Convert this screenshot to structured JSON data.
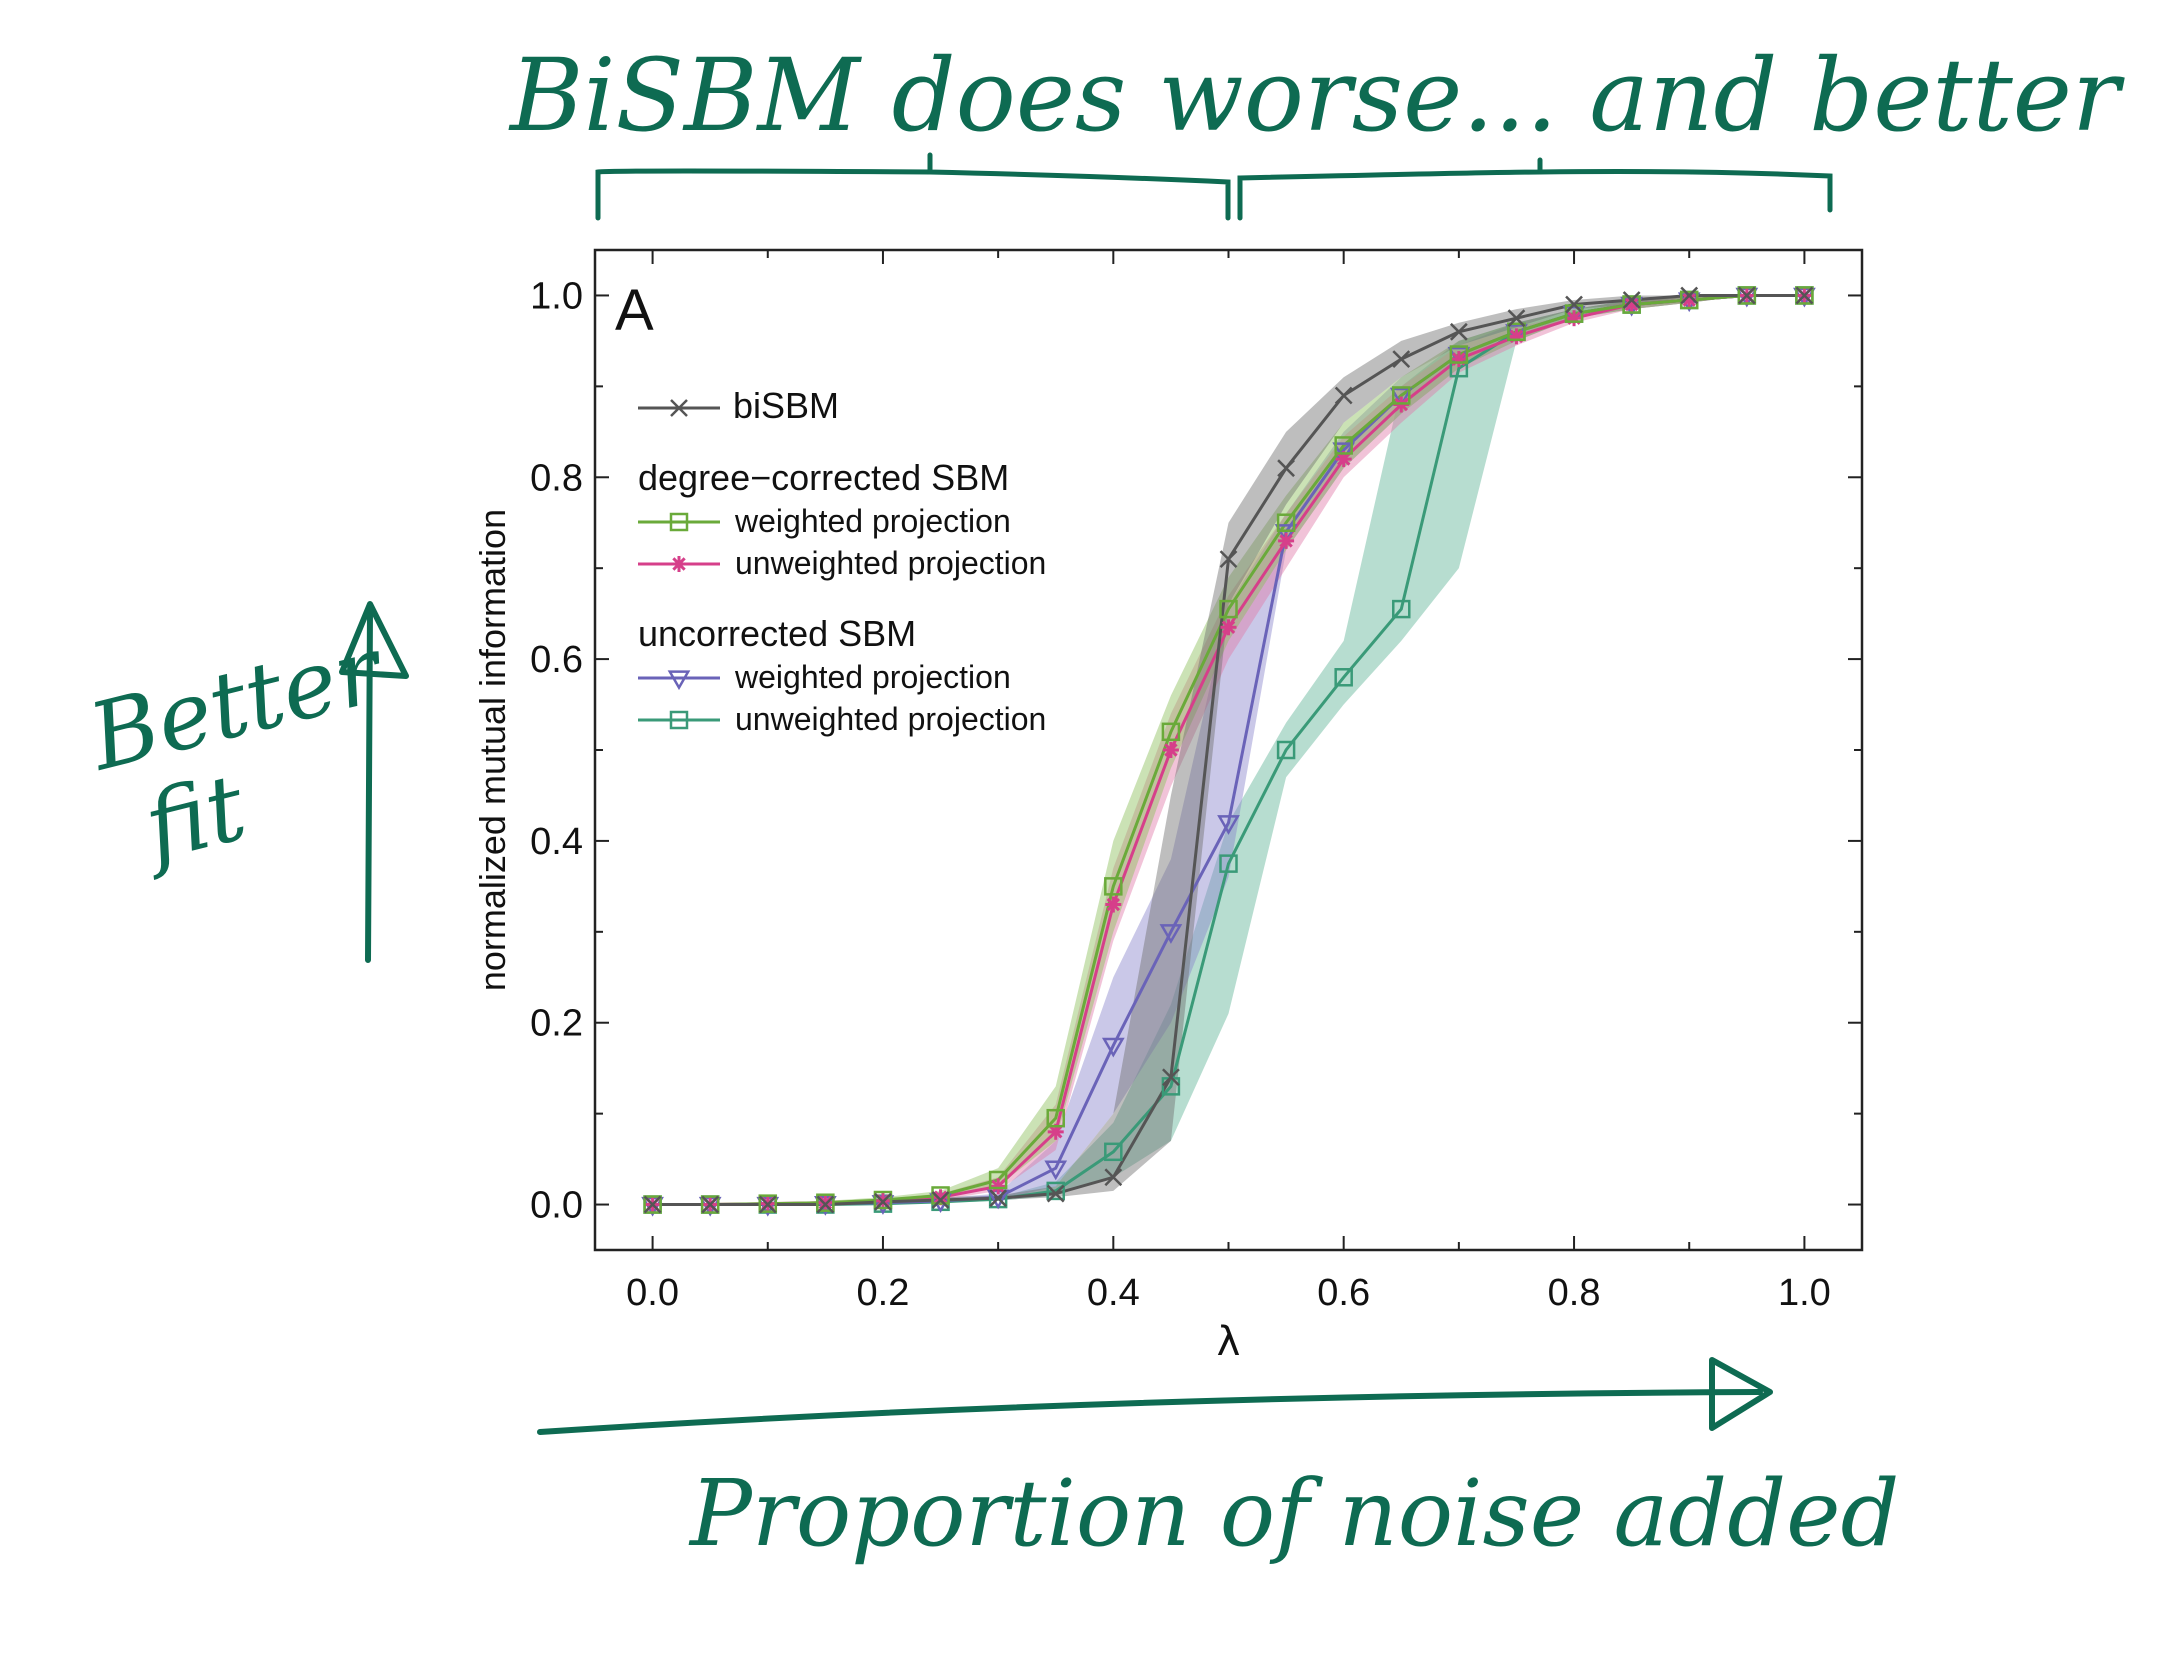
{
  "annotations": {
    "top_note": "BiSBM does worse... and better",
    "left_note_line1": "Better",
    "left_note_line2": "fit",
    "bottom_note": "Proportion of noise added",
    "ink_color": "#0e6b52"
  },
  "chart_data": {
    "type": "line",
    "panel_label": "A",
    "xlabel": "λ",
    "ylabel": "normalized mutual information",
    "xlim": [
      -0.05,
      1.05
    ],
    "ylim": [
      -0.05,
      1.05
    ],
    "xticks": [
      "0.0",
      "0.2",
      "0.4",
      "0.6",
      "0.8",
      "1.0"
    ],
    "yticks": [
      "0.0",
      "0.2",
      "0.4",
      "0.6",
      "0.8",
      "1.0"
    ],
    "grid": false,
    "legend_position": "upper-left",
    "legend_groups": [
      {
        "title": "",
        "entries": [
          0
        ]
      },
      {
        "title": "degree−corrected SBM",
        "entries": [
          1,
          2
        ]
      },
      {
        "title": "uncorrected SBM",
        "entries": [
          3,
          4
        ]
      }
    ],
    "series": [
      {
        "name": "biSBM",
        "color": "#555555",
        "band_color": "#6e6e6e",
        "marker": "x",
        "x": [
          0,
          0.05,
          0.1,
          0.15,
          0.2,
          0.25,
          0.3,
          0.35,
          0.4,
          0.45,
          0.5,
          0.55,
          0.6,
          0.65,
          0.7,
          0.75,
          0.8,
          0.85,
          0.9,
          0.95,
          1.0
        ],
        "y": [
          0.0,
          0.0,
          0.0,
          0.0,
          0.003,
          0.005,
          0.007,
          0.012,
          0.03,
          0.14,
          0.71,
          0.81,
          0.89,
          0.93,
          0.96,
          0.975,
          0.99,
          0.995,
          1.0,
          1.0,
          1.0
        ],
        "lo": [
          0.0,
          0.0,
          0.0,
          0.0,
          0.002,
          0.003,
          0.005,
          0.008,
          0.015,
          0.07,
          0.66,
          0.77,
          0.86,
          0.91,
          0.945,
          0.965,
          0.985,
          0.99,
          0.998,
          1.0,
          1.0
        ],
        "hi": [
          0.0,
          0.0,
          0.0,
          0.0,
          0.005,
          0.008,
          0.01,
          0.02,
          0.1,
          0.45,
          0.75,
          0.85,
          0.91,
          0.95,
          0.97,
          0.985,
          0.995,
          1.0,
          1.0,
          1.0,
          1.0
        ]
      },
      {
        "name": "weighted projection",
        "color": "#6aaa3a",
        "band_color": "#8cbf5a",
        "marker": "square",
        "x": [
          0,
          0.05,
          0.1,
          0.15,
          0.2,
          0.25,
          0.3,
          0.35,
          0.4,
          0.45,
          0.5,
          0.55,
          0.6,
          0.65,
          0.7,
          0.75,
          0.8,
          0.85,
          0.9,
          0.95,
          1.0
        ],
        "y": [
          0.0,
          0.0,
          0.001,
          0.002,
          0.005,
          0.01,
          0.027,
          0.095,
          0.35,
          0.52,
          0.655,
          0.75,
          0.835,
          0.89,
          0.935,
          0.96,
          0.98,
          0.99,
          0.995,
          1.0,
          1.0
        ],
        "lo": [
          0.0,
          0.0,
          0.0,
          0.001,
          0.003,
          0.007,
          0.02,
          0.07,
          0.3,
          0.48,
          0.62,
          0.72,
          0.81,
          0.87,
          0.92,
          0.95,
          0.975,
          0.985,
          0.992,
          1.0,
          1.0
        ],
        "hi": [
          0.0,
          0.001,
          0.002,
          0.004,
          0.008,
          0.015,
          0.04,
          0.13,
          0.4,
          0.56,
          0.69,
          0.78,
          0.86,
          0.91,
          0.95,
          0.97,
          0.985,
          0.995,
          1.0,
          1.0,
          1.0
        ]
      },
      {
        "name": "unweighted projection",
        "color": "#d63f8a",
        "band_color": "#e07aa8",
        "marker": "star",
        "x": [
          0,
          0.05,
          0.1,
          0.15,
          0.2,
          0.25,
          0.3,
          0.35,
          0.4,
          0.45,
          0.5,
          0.55,
          0.6,
          0.65,
          0.7,
          0.75,
          0.8,
          0.85,
          0.9,
          0.95,
          1.0
        ],
        "y": [
          0.0,
          0.0,
          0.001,
          0.002,
          0.004,
          0.008,
          0.02,
          0.08,
          0.33,
          0.5,
          0.635,
          0.73,
          0.82,
          0.88,
          0.93,
          0.955,
          0.975,
          0.99,
          0.995,
          1.0,
          1.0
        ],
        "lo": [
          0.0,
          0.0,
          0.0,
          0.001,
          0.002,
          0.005,
          0.015,
          0.06,
          0.29,
          0.46,
          0.6,
          0.7,
          0.8,
          0.86,
          0.915,
          0.945,
          0.97,
          0.985,
          0.992,
          1.0,
          1.0
        ],
        "hi": [
          0.0,
          0.001,
          0.002,
          0.004,
          0.006,
          0.012,
          0.03,
          0.11,
          0.37,
          0.54,
          0.67,
          0.76,
          0.845,
          0.9,
          0.945,
          0.965,
          0.98,
          0.995,
          1.0,
          1.0,
          1.0
        ]
      },
      {
        "name": "weighted projection",
        "color": "#6a63b8",
        "band_color": "#8a84cc",
        "marker": "triangle-down",
        "x": [
          0,
          0.05,
          0.1,
          0.15,
          0.2,
          0.25,
          0.3,
          0.35,
          0.4,
          0.45,
          0.5,
          0.55,
          0.6,
          0.65,
          0.7,
          0.75,
          0.8,
          0.85,
          0.9,
          0.95,
          1.0
        ],
        "y": [
          0.0,
          0.0,
          0.0,
          0.001,
          0.002,
          0.004,
          0.008,
          0.04,
          0.175,
          0.3,
          0.42,
          0.74,
          0.83,
          0.89,
          0.935,
          0.96,
          0.98,
          0.99,
          0.995,
          1.0,
          1.0
        ],
        "lo": [
          0.0,
          0.0,
          0.0,
          0.0,
          0.001,
          0.002,
          0.005,
          0.02,
          0.1,
          0.2,
          0.36,
          0.72,
          0.81,
          0.87,
          0.92,
          0.95,
          0.975,
          0.985,
          0.992,
          1.0,
          1.0
        ],
        "hi": [
          0.0,
          0.0,
          0.001,
          0.002,
          0.004,
          0.007,
          0.012,
          0.07,
          0.25,
          0.38,
          0.66,
          0.76,
          0.85,
          0.91,
          0.945,
          0.97,
          0.985,
          0.995,
          1.0,
          1.0,
          1.0
        ]
      },
      {
        "name": "unweighted projection",
        "color": "#3a9a78",
        "band_color": "#5fb396",
        "marker": "square",
        "x": [
          0,
          0.05,
          0.1,
          0.15,
          0.2,
          0.25,
          0.3,
          0.35,
          0.4,
          0.45,
          0.5,
          0.55,
          0.6,
          0.65,
          0.7,
          0.75,
          0.8,
          0.85,
          0.9,
          0.95,
          1.0
        ],
        "y": [
          0.0,
          0.0,
          0.0,
          0.0,
          0.001,
          0.003,
          0.006,
          0.015,
          0.058,
          0.13,
          0.375,
          0.5,
          0.58,
          0.655,
          0.92,
          0.96,
          0.98,
          0.99,
          0.995,
          1.0,
          1.0
        ],
        "lo": [
          0.0,
          0.0,
          0.0,
          0.0,
          0.0,
          0.002,
          0.004,
          0.01,
          0.03,
          0.07,
          0.21,
          0.47,
          0.55,
          0.62,
          0.7,
          0.95,
          0.975,
          0.985,
          0.992,
          1.0,
          1.0
        ],
        "hi": [
          0.0,
          0.0,
          0.0,
          0.001,
          0.002,
          0.005,
          0.008,
          0.025,
          0.09,
          0.22,
          0.42,
          0.53,
          0.62,
          0.9,
          0.95,
          0.97,
          0.985,
          0.995,
          1.0,
          1.0,
          1.0
        ]
      }
    ]
  }
}
